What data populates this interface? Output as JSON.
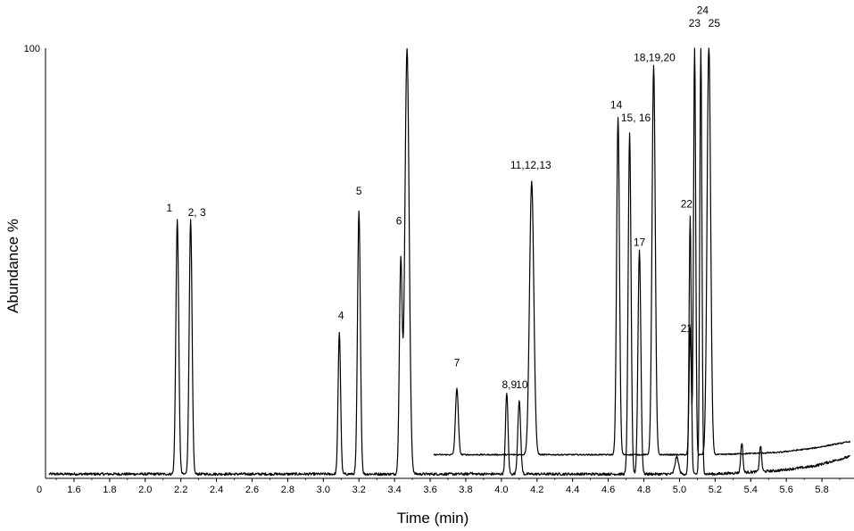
{
  "chart_data": {
    "type": "line",
    "title": "",
    "xlabel": "Time  (min)",
    "ylabel": "Abundance  %",
    "xlim": [
      1.44,
      5.98
    ],
    "ylim": [
      0,
      100
    ],
    "grid": false,
    "x_ticks": [
      "1.6",
      "1.8",
      "2.0",
      "2.2",
      "2.4",
      "2.6",
      "2.8",
      "3.0",
      "3.2",
      "3.4",
      "3.6",
      "3.8",
      "4.0",
      "4.2",
      "4.4",
      "4.6",
      "4.8",
      "5.0",
      "5.2",
      "5.4",
      "5.6",
      "5.8"
    ],
    "y_tick_labels": [
      "0",
      "100"
    ],
    "series": [
      {
        "baseline": 1,
        "noise": 0.3,
        "baseline_drift": [
          [
            5.2,
            0
          ],
          [
            5.55,
            0.8
          ],
          [
            5.75,
            1.8
          ],
          [
            5.95,
            4.0
          ]
        ],
        "peaks": [
          [
            2.18,
            60,
            0.008
          ],
          [
            2.255,
            60,
            0.008
          ],
          [
            3.09,
            34,
            0.007
          ],
          [
            3.2,
            62,
            0.008
          ],
          [
            3.435,
            50,
            0.008
          ],
          [
            3.47,
            100,
            0.012
          ],
          [
            3.83,
            1.5,
            0.004
          ],
          [
            4.03,
            20,
            0.007
          ],
          [
            4.1,
            18,
            0.008
          ],
          [
            4.72,
            80,
            0.008
          ],
          [
            4.775,
            53,
            0.008
          ],
          [
            4.985,
            5,
            0.01
          ],
          [
            5.06,
            61,
            0.006
          ],
          [
            5.12,
            100,
            0.006
          ],
          [
            5.35,
            8,
            0.006
          ],
          [
            5.455,
            7,
            0.006
          ]
        ]
      },
      {
        "x_start": 3.62,
        "baseline": 4.5,
        "noise": 0.15,
        "baseline_drift": [
          [
            5.2,
            1
          ],
          [
            5.55,
            1.5
          ],
          [
            5.75,
            2.5
          ],
          [
            5.95,
            4.0
          ]
        ],
        "peaks": [
          [
            3.75,
            20,
            0.008
          ],
          [
            4.17,
            68,
            0.012
          ],
          [
            4.655,
            83,
            0.008
          ],
          [
            4.855,
            95,
            0.009
          ],
          [
            5.06,
            34,
            0.006
          ],
          [
            5.085,
            100,
            0.006
          ],
          [
            5.165,
            100,
            0.01
          ]
        ]
      }
    ],
    "peak_labels": [
      {
        "text": "1",
        "x": 2.135,
        "y": 62
      },
      {
        "text": "2, 3",
        "x": 2.29,
        "y": 61
      },
      {
        "text": "4",
        "x": 3.1,
        "y": 37
      },
      {
        "text": "5",
        "x": 3.2,
        "y": 66
      },
      {
        "text": "6",
        "x": 3.425,
        "y": 59
      },
      {
        "text": "7",
        "x": 3.75,
        "y": 26
      },
      {
        "text": "8,9",
        "x": 4.045,
        "y": 21
      },
      {
        "text": "10",
        "x": 4.115,
        "y": 21
      },
      {
        "text": "11,12,13",
        "x": 4.165,
        "y": 72
      },
      {
        "text": "14",
        "x": 4.645,
        "y": 86
      },
      {
        "text": "15, 16",
        "x": 4.755,
        "y": 83
      },
      {
        "text": "17",
        "x": 4.775,
        "y": 54
      },
      {
        "text": "18,19,20",
        "x": 4.86,
        "y": 97
      },
      {
        "text": "21",
        "x": 5.04,
        "y": 34
      },
      {
        "text": "22",
        "x": 5.04,
        "y": 63
      },
      {
        "text": "23",
        "x": 5.085,
        "y": 105
      },
      {
        "text": "24",
        "x": 5.13,
        "y": 108
      },
      {
        "text": "25",
        "x": 5.195,
        "y": 105
      }
    ]
  }
}
